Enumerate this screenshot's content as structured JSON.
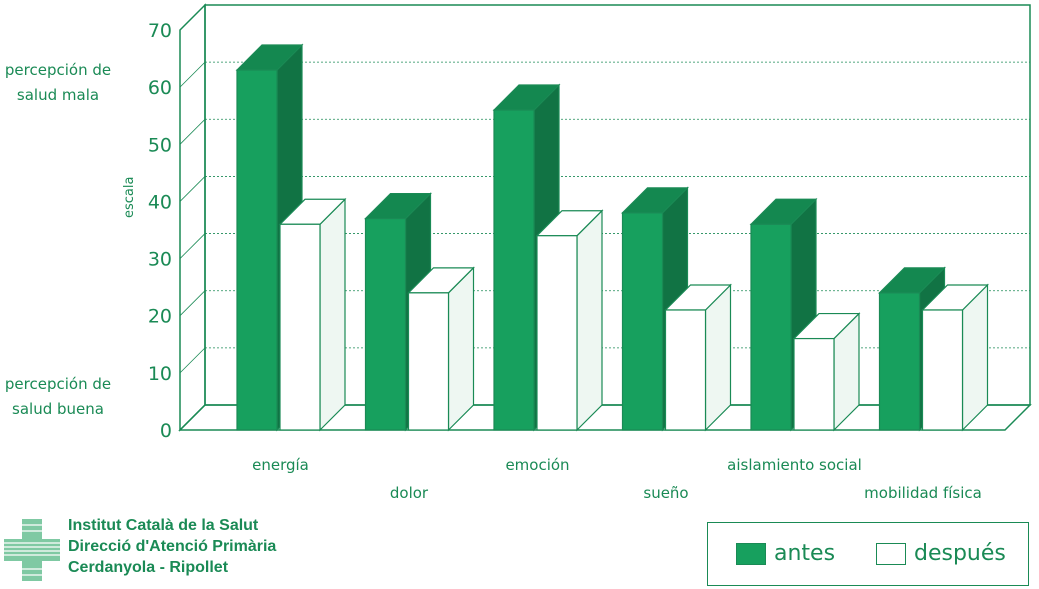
{
  "chart_data": {
    "type": "bar",
    "categories": [
      "energía",
      "dolor",
      "emoción",
      "sueño",
      "aislamiento social",
      "mobilidad física"
    ],
    "series": [
      {
        "name": "antes",
        "values": [
          63,
          37,
          56,
          38,
          36,
          24
        ]
      },
      {
        "name": "después",
        "values": [
          36,
          24,
          34,
          21,
          16,
          21
        ]
      }
    ],
    "ylabel": "escala",
    "ylim": [
      0,
      70
    ],
    "yticks": [
      0,
      10,
      20,
      30,
      40,
      50,
      60,
      70
    ],
    "grid": true,
    "legend_position": "bottom-right"
  },
  "annotations": {
    "top": [
      "percepción de",
      "salud mala"
    ],
    "bottom": [
      "percepción de",
      "salud buena"
    ]
  },
  "logo": {
    "lines": [
      "Institut Català de la Salut",
      "Direcció d'Atenció Primària",
      "Cerdanyola - Ripollet"
    ]
  },
  "legend": {
    "antes": "antes",
    "despues": "después"
  },
  "colors": {
    "antes": "#17a05e",
    "despues": "#ffffff",
    "frame": "#1a8a55"
  }
}
